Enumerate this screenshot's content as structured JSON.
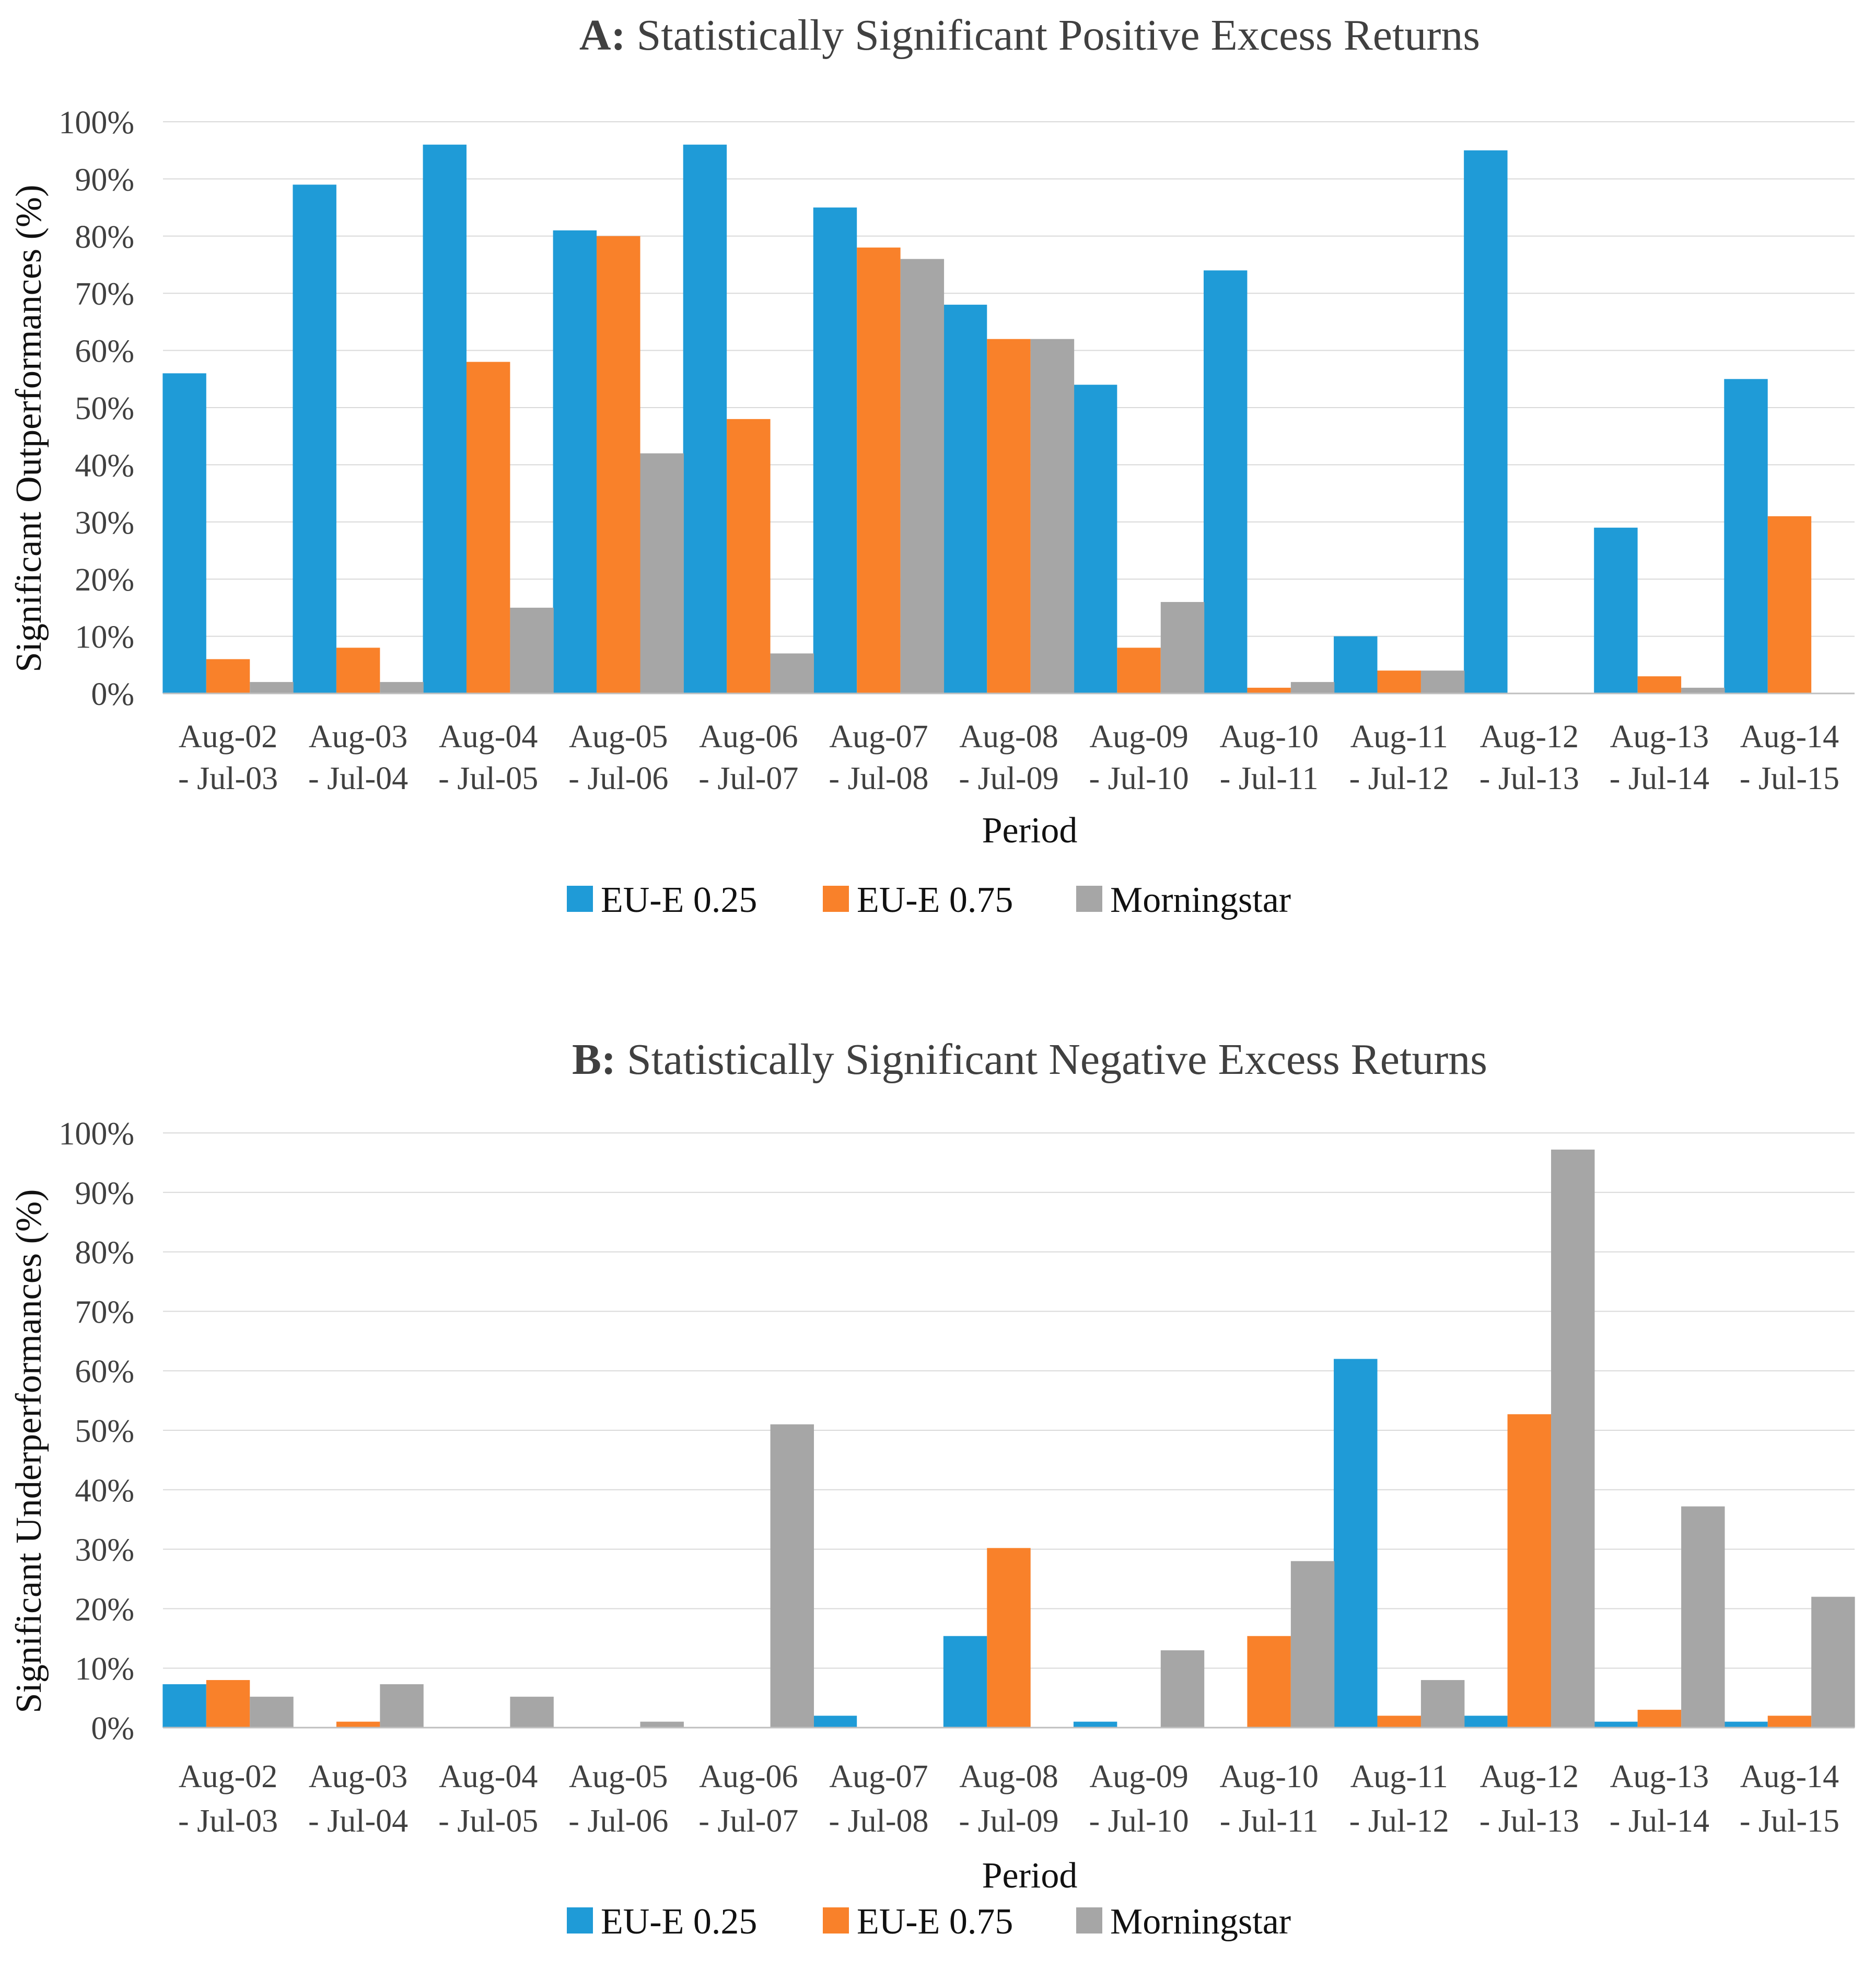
{
  "chart_data": [
    {
      "type": "bar",
      "title_prefix": "A:",
      "title": "Statistically Significant Positive Excess Returns",
      "xlabel": "Period",
      "ylabel": "Significant Outperformances (%)",
      "ylim": [
        0,
        100
      ],
      "yticks": [
        "0%",
        "10%",
        "20%",
        "30%",
        "40%",
        "50%",
        "60%",
        "70%",
        "80%",
        "90%",
        "100%"
      ],
      "categories": [
        [
          "Aug-02",
          "- Jul-03"
        ],
        [
          "Aug-03",
          "- Jul-04"
        ],
        [
          "Aug-04",
          "- Jul-05"
        ],
        [
          "Aug-05",
          "- Jul-06"
        ],
        [
          "Aug-06",
          "- Jul-07"
        ],
        [
          "Aug-07",
          "- Jul-08"
        ],
        [
          "Aug-08",
          "- Jul-09"
        ],
        [
          "Aug-09",
          "- Jul-10"
        ],
        [
          "Aug-10",
          "- Jul-11"
        ],
        [
          "Aug-11",
          "- Jul-12"
        ],
        [
          "Aug-12",
          "- Jul-13"
        ],
        [
          "Aug-13",
          "- Jul-14"
        ],
        [
          "Aug-14",
          "- Jul-15"
        ]
      ],
      "series": [
        {
          "name": "EU-E 0.25",
          "color": "#1f9bd7",
          "values": [
            56,
            89,
            96,
            81,
            96,
            85,
            68,
            54,
            74,
            10,
            95,
            29,
            55
          ]
        },
        {
          "name": "EU-E 0.75",
          "color": "#f9812a",
          "values": [
            6,
            8,
            58,
            80,
            48,
            78,
            62,
            8,
            1,
            4,
            0,
            3,
            31
          ]
        },
        {
          "name": "Morningstar",
          "color": "#a6a6a6",
          "values": [
            2,
            2,
            15,
            42,
            7,
            76,
            62,
            16,
            2,
            4,
            0,
            1,
            0
          ]
        }
      ],
      "legend": "bottom",
      "grid": true
    },
    {
      "type": "bar",
      "title_prefix": "B:",
      "title": "Statistically Significant Negative Excess Returns",
      "xlabel": "Period",
      "ylabel": "Significant Underperformances (%)",
      "ylim": [
        0,
        100
      ],
      "yticks": [
        "0%",
        "10%",
        "20%",
        "30%",
        "40%",
        "50%",
        "60%",
        "70%",
        "80%",
        "90%",
        "100%"
      ],
      "categories": [
        [
          "Aug-02",
          "- Jul-03"
        ],
        [
          "Aug-03",
          "- Jul-04"
        ],
        [
          "Aug-04",
          "- Jul-05"
        ],
        [
          "Aug-05",
          "- Jul-06"
        ],
        [
          "Aug-06",
          "- Jul-07"
        ],
        [
          "Aug-07",
          "- Jul-08"
        ],
        [
          "Aug-08",
          "- Jul-09"
        ],
        [
          "Aug-09",
          "- Jul-10"
        ],
        [
          "Aug-10",
          "- Jul-11"
        ],
        [
          "Aug-11",
          "- Jul-12"
        ],
        [
          "Aug-12",
          "- Jul-13"
        ],
        [
          "Aug-13",
          "- Jul-14"
        ],
        [
          "Aug-14",
          "- Jul-15"
        ]
      ],
      "series": [
        {
          "name": "EU-E 0.25",
          "color": "#1f9bd7",
          "values": [
            7.3,
            0,
            0,
            0,
            0,
            2,
            15.4,
            1,
            0,
            62,
            2,
            1,
            1
          ]
        },
        {
          "name": "EU-E 0.75",
          "color": "#f9812a",
          "values": [
            8,
            1,
            0,
            0,
            0,
            0,
            30.2,
            0,
            15.4,
            2,
            52.7,
            3,
            2
          ]
        },
        {
          "name": "Morningstar",
          "color": "#a6a6a6",
          "values": [
            5.2,
            7.3,
            5.2,
            1,
            51,
            0,
            0,
            13,
            28,
            8,
            97.2,
            37.2,
            22
          ]
        }
      ],
      "legend": "bottom",
      "grid": true
    }
  ]
}
